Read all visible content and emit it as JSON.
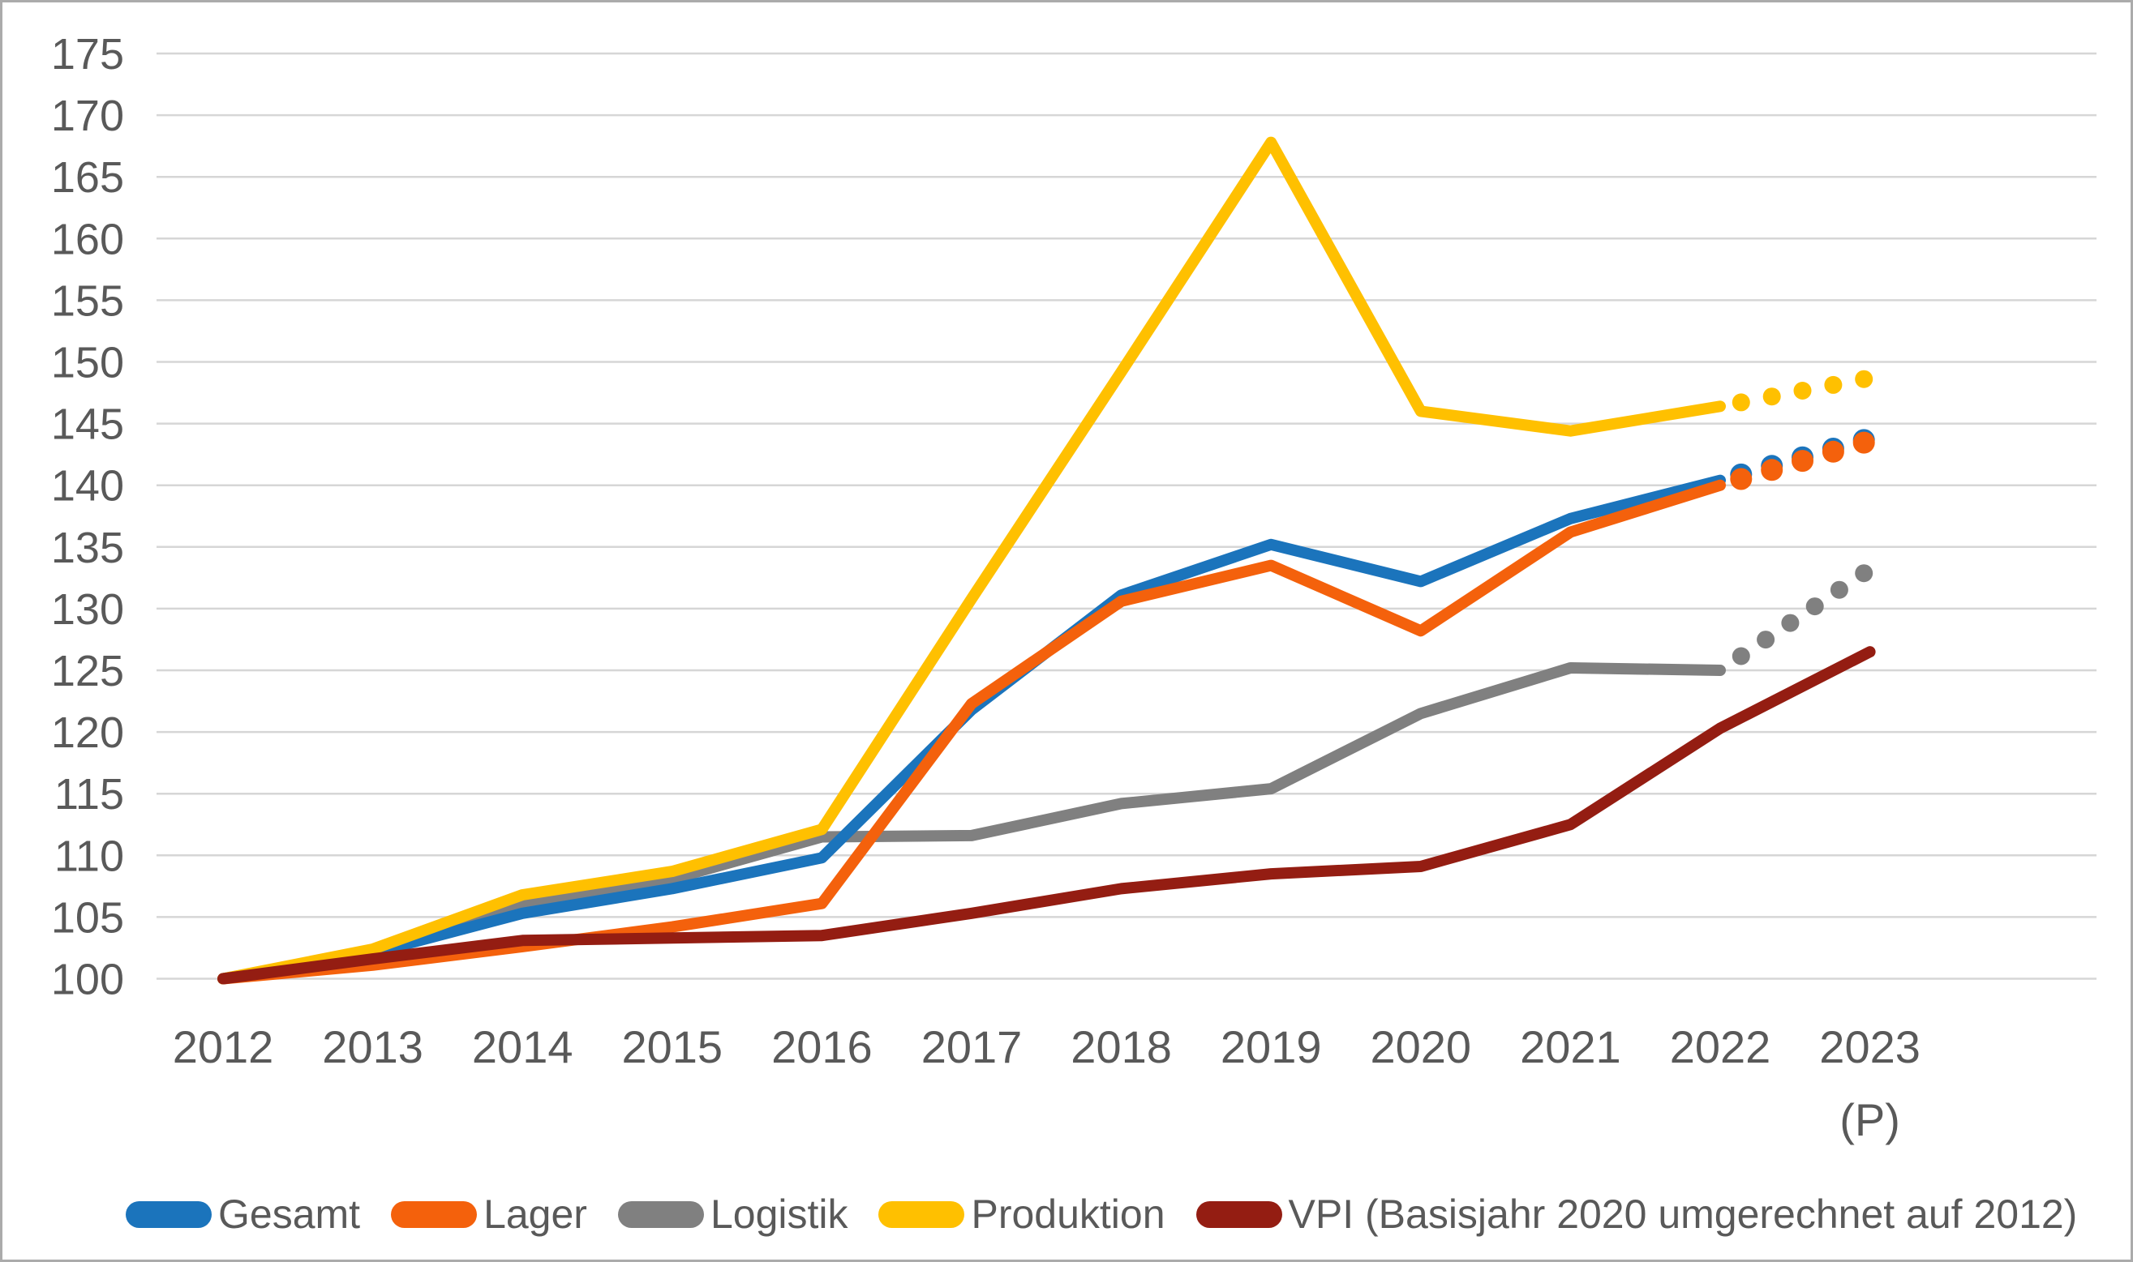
{
  "chart_data": {
    "type": "line",
    "title": "",
    "categories": [
      "2012",
      "2013",
      "2014",
      "2015",
      "2016",
      "2017",
      "2018",
      "2019",
      "2020",
      "2021",
      "2022",
      "2023"
    ],
    "last_category_note": "(P)",
    "ylim": [
      100,
      175
    ],
    "ytick_step": 5,
    "yticks": [
      100,
      105,
      110,
      115,
      120,
      125,
      130,
      135,
      140,
      145,
      150,
      155,
      160,
      165,
      170,
      175
    ],
    "grid": "horizontal-only",
    "gridline_color": "#D6D6D6",
    "axis_label_color": "#595959",
    "legend_position": "bottom",
    "projection_note": "last segment 2022-2023 shown dotted for all series except VPI",
    "series": [
      {
        "name": "Gesamt",
        "color": "#1B74BC",
        "projected_last_segment": true,
        "values": [
          100,
          102.1,
          105.3,
          107.3,
          109.8,
          121.8,
          131.1,
          135.2,
          132.2,
          137.3,
          140.4,
          143.8
        ]
      },
      {
        "name": "Lager",
        "color": "#F4610C",
        "projected_last_segment": true,
        "values": [
          100,
          101.1,
          102.6,
          104.2,
          106.1,
          122.3,
          130.6,
          133.5,
          128.2,
          136.2,
          140.0,
          143.6
        ]
      },
      {
        "name": "Logistik",
        "color": "#808080",
        "projected_last_segment": true,
        "values": [
          100,
          102.2,
          105.9,
          108.1,
          111.5,
          111.6,
          114.2,
          115.4,
          121.5,
          125.2,
          125.0,
          133.2
        ]
      },
      {
        "name": "Produktion",
        "color": "#FFC000",
        "projected_last_segment": true,
        "values": [
          100,
          102.4,
          106.8,
          108.7,
          112.1,
          130.8,
          149.2,
          167.8,
          146.0,
          144.4,
          146.4,
          148.7
        ]
      },
      {
        "name": "VPI (Basisjahr 2020 umgerechnet auf 2012)",
        "color": "#941D12",
        "projected_last_segment": false,
        "values": [
          100,
          101.6,
          103.1,
          103.3,
          103.5,
          105.3,
          107.3,
          108.5,
          109.1,
          112.5,
          120.3,
          126.5
        ]
      }
    ]
  }
}
